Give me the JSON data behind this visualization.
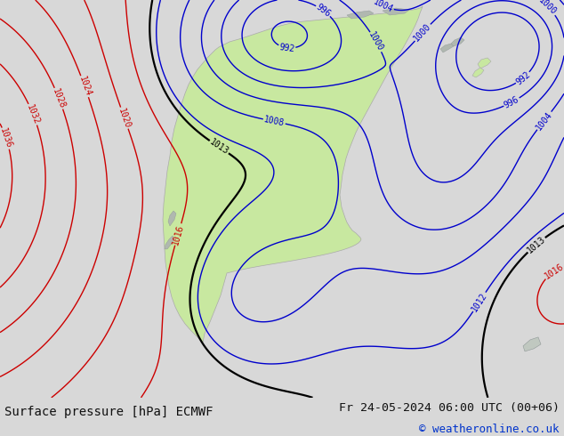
{
  "title_left": "Surface pressure [hPa] ECMWF",
  "title_right": "Fr 24-05-2024 06:00 UTC (00+06)",
  "copyright": "© weatheronline.co.uk",
  "bg_color": "#e8e8e8",
  "footer_bg": "#d8d8d8",
  "footer_text_color": "#111111",
  "copyright_color": "#0033cc",
  "ocean_color": "#e0e8ee",
  "land_color": "#c8e8a0",
  "coast_color": "#aaaaaa",
  "contour_blue_color": "#0000cc",
  "contour_red_color": "#cc0000",
  "contour_black_color": "#000000",
  "label_blue": "#0000cc",
  "label_red": "#cc0000",
  "label_black": "#000000",
  "figsize": [
    6.34,
    4.9
  ],
  "dpi": 100
}
